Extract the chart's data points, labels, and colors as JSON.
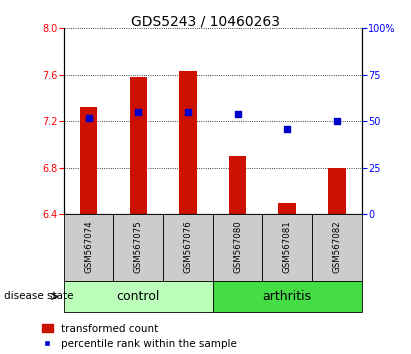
{
  "title": "GDS5243 / 10460263",
  "samples": [
    "GSM567074",
    "GSM567075",
    "GSM567076",
    "GSM567080",
    "GSM567081",
    "GSM567082"
  ],
  "bar_values": [
    7.32,
    7.58,
    7.63,
    6.9,
    6.5,
    6.8
  ],
  "bar_bottom": 6.4,
  "percentile_right": [
    52,
    55,
    55,
    54,
    46,
    50
  ],
  "ylim_left": [
    6.4,
    8.0
  ],
  "ylim_right": [
    0,
    100
  ],
  "yticks_left": [
    6.4,
    6.8,
    7.2,
    7.6,
    8.0
  ],
  "yticks_right": [
    0,
    25,
    50,
    75,
    100
  ],
  "bar_color": "#cc1100",
  "dot_color": "#0000cc",
  "control_color": "#bbffbb",
  "arthritis_color": "#44dd44",
  "label_bg_color": "#cccccc",
  "group_label_fontsize": 9,
  "tick_label_fontsize": 7,
  "legend_fontsize": 7.5,
  "title_fontsize": 10,
  "bar_width": 0.35
}
